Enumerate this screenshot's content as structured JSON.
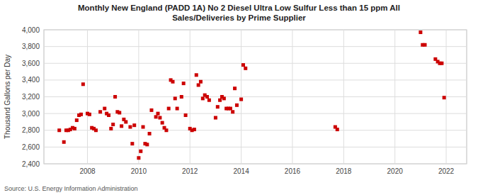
{
  "chart_data": {
    "type": "scatter",
    "title": "Monthly New England (PADD 1A) No 2 Diesel Ultra Low Sulfur Less than 15 ppm All\nSales/Deliveries by Prime Supplier",
    "y_label": "Thousand Gallons per Day",
    "annotations": [
      "Source: U.S. Energy Information Administration"
    ],
    "color": "#cc0000",
    "marker": "square",
    "grid": true,
    "xlim": [
      2006.3,
      2022.8
    ],
    "xticks": [
      2008,
      2010,
      2012,
      2014,
      2016,
      2018,
      2020,
      2022
    ],
    "ylim": [
      2400,
      4000
    ],
    "yticks": [
      {
        "value": 2400,
        "label": "2,400"
      },
      {
        "value": 2600,
        "label": "2,600"
      },
      {
        "value": 2800,
        "label": "2,800"
      },
      {
        "value": 3000,
        "label": "3,000"
      },
      {
        "value": 3200,
        "label": "3,200"
      },
      {
        "value": 3400,
        "label": "3,400"
      },
      {
        "value": 3600,
        "label": "3,600"
      },
      {
        "value": 3800,
        "label": "3,800"
      },
      {
        "value": 4000,
        "label": "4,000"
      }
    ],
    "x": [
      2006.9,
      2007.08,
      2007.17,
      2007.25,
      2007.33,
      2007.42,
      2007.5,
      2007.58,
      2007.67,
      2007.75,
      2007.83,
      2008.0,
      2008.08,
      2008.17,
      2008.25,
      2008.33,
      2008.5,
      2008.67,
      2008.75,
      2008.83,
      2008.92,
      2009.0,
      2009.08,
      2009.17,
      2009.25,
      2009.33,
      2009.42,
      2009.5,
      2009.67,
      2009.75,
      2009.83,
      2010.0,
      2010.08,
      2010.17,
      2010.25,
      2010.33,
      2010.42,
      2010.5,
      2010.67,
      2010.75,
      2010.83,
      2010.92,
      2011.0,
      2011.08,
      2011.17,
      2011.25,
      2011.33,
      2011.42,
      2011.5,
      2011.67,
      2011.75,
      2011.83,
      2012.0,
      2012.08,
      2012.17,
      2012.25,
      2012.33,
      2012.42,
      2012.5,
      2012.58,
      2012.67,
      2012.75,
      2013.0,
      2013.08,
      2013.17,
      2013.25,
      2013.33,
      2013.42,
      2013.5,
      2013.58,
      2013.67,
      2013.75,
      2013.83,
      2014.0,
      2014.08,
      2014.17,
      2017.67,
      2017.75,
      2021.0,
      2021.08,
      2021.17,
      2021.58,
      2021.67,
      2021.75,
      2021.83,
      2021.92
    ],
    "values": [
      2800,
      2660,
      2800,
      2800,
      2810,
      2830,
      2820,
      2920,
      2980,
      2990,
      3350,
      3000,
      2990,
      2830,
      2820,
      2800,
      3020,
      3060,
      3000,
      2980,
      2820,
      2870,
      3200,
      3020,
      3010,
      2850,
      2930,
      2900,
      2840,
      2640,
      2860,
      2470,
      2550,
      2840,
      2640,
      2630,
      2760,
      3040,
      2960,
      3000,
      2950,
      2890,
      2830,
      2800,
      3060,
      3400,
      3380,
      3180,
      3060,
      3200,
      3360,
      2980,
      2820,
      2800,
      2810,
      3460,
      3340,
      3380,
      3180,
      3220,
      3200,
      3160,
      2950,
      3080,
      3160,
      3200,
      3180,
      3060,
      3060,
      3060,
      3020,
      3300,
      3100,
      3170,
      3580,
      3540,
      2840,
      2810,
      3970,
      3820,
      3820,
      3650,
      3620,
      3600,
      3600,
      3190
    ]
  }
}
